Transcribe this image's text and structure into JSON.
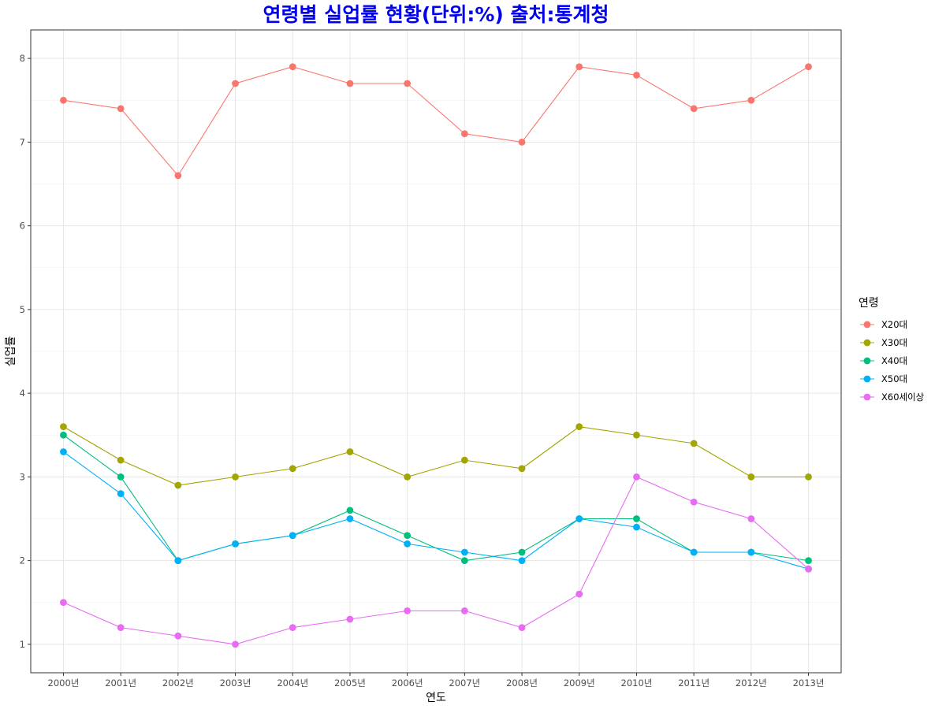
{
  "chart_data": {
    "type": "line",
    "title": "연령별 실업률 현황(단위:%) 출처:통계청",
    "xlabel": "연도",
    "ylabel": "실업률",
    "categories": [
      "2000년",
      "2001년",
      "2002년",
      "2003년",
      "2004년",
      "2005년",
      "2006년",
      "2007년",
      "2008년",
      "2009년",
      "2010년",
      "2011년",
      "2012년",
      "2013년"
    ],
    "yticks": [
      "1",
      "2",
      "3",
      "4",
      "5",
      "6",
      "7",
      "8"
    ],
    "ylim": [
      0.66,
      8.34
    ],
    "grid": true,
    "legend": {
      "title": "연령",
      "placement": "right"
    },
    "series": [
      {
        "name": "X20대",
        "color": "#F8766D",
        "values": [
          7.5,
          7.4,
          6.6,
          7.7,
          7.9,
          7.7,
          7.7,
          7.1,
          7.0,
          7.9,
          7.8,
          7.4,
          7.5,
          7.9
        ]
      },
      {
        "name": "X30대",
        "color": "#A3A500",
        "values": [
          3.6,
          3.2,
          2.9,
          3.0,
          3.1,
          3.3,
          3.0,
          3.2,
          3.1,
          3.6,
          3.5,
          3.4,
          3.0,
          3.0
        ]
      },
      {
        "name": "X40대",
        "color": "#00BF7D",
        "values": [
          3.5,
          3.0,
          2.0,
          2.2,
          2.3,
          2.6,
          2.3,
          2.0,
          2.1,
          2.5,
          2.5,
          2.1,
          2.1,
          2.0
        ]
      },
      {
        "name": "X50대",
        "color": "#00B0F6",
        "values": [
          3.3,
          2.8,
          2.0,
          2.2,
          2.3,
          2.5,
          2.2,
          2.1,
          2.0,
          2.5,
          2.4,
          2.1,
          2.1,
          1.9
        ]
      },
      {
        "name": "X60세이상",
        "color": "#E76BF3",
        "values": [
          1.5,
          1.2,
          1.1,
          1.0,
          1.2,
          1.3,
          1.4,
          1.4,
          1.2,
          1.6,
          3.0,
          2.7,
          2.5,
          1.9
        ]
      }
    ]
  }
}
